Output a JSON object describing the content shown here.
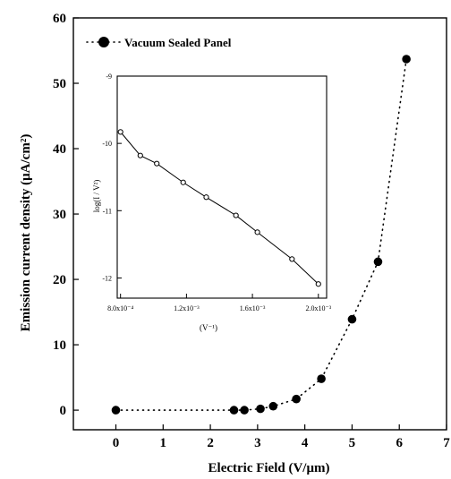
{
  "chart_data": [
    {
      "type": "scatter",
      "xlabel": "Electric Field (V/μm)",
      "ylabel": "Emission current density (μA/cm²)",
      "xlim": [
        -0.9,
        7
      ],
      "ylim": [
        -3,
        60
      ],
      "x_ticks": [
        0,
        1,
        2,
        3,
        4,
        5,
        6,
        7
      ],
      "y_ticks": [
        0,
        10,
        20,
        30,
        40,
        50,
        60
      ],
      "legend": {
        "position": "top-left",
        "entries": [
          "Vacuum Sealed Panel"
        ]
      },
      "series": [
        {
          "name": "Vacuum Sealed Panel",
          "marker": "filled-circle",
          "line": "dotted",
          "color": "#000000",
          "x": [
            0,
            2.5,
            2.72,
            3.06,
            3.33,
            3.82,
            4.35,
            5.0,
            5.55,
            6.15
          ],
          "y": [
            0,
            0,
            0,
            0.2,
            0.6,
            1.7,
            4.8,
            13.9,
            22.7,
            53.7
          ]
        }
      ]
    },
    {
      "type": "line",
      "xlabel": "(V⁻¹)",
      "ylabel": "log(I / V²)",
      "xlim": [
        0.00078,
        0.00205
      ],
      "ylim": [
        -12.3,
        -9.0
      ],
      "x_ticks": [
        0.0008,
        0.0012,
        0.0016,
        0.002
      ],
      "x_tick_labels": [
        "8.0x10⁻⁴",
        "1.2x10⁻³",
        "1.6x10⁻³",
        "2.0x10⁻³"
      ],
      "y_ticks": [
        -9,
        -10,
        -11,
        -12
      ],
      "y_tick_labels": [
        "-9",
        "-10",
        "-11",
        "-12"
      ],
      "series": [
        {
          "marker": "open-circle",
          "line": "solid",
          "color": "#000000",
          "x": [
            0.0008,
            0.00092,
            0.00102,
            0.00118,
            0.00132,
            0.0015,
            0.00163,
            0.00184,
            0.002
          ],
          "y": [
            -9.83,
            -10.18,
            -10.3,
            -10.58,
            -10.8,
            -11.07,
            -11.32,
            -11.72,
            -12.09
          ]
        }
      ]
    }
  ]
}
